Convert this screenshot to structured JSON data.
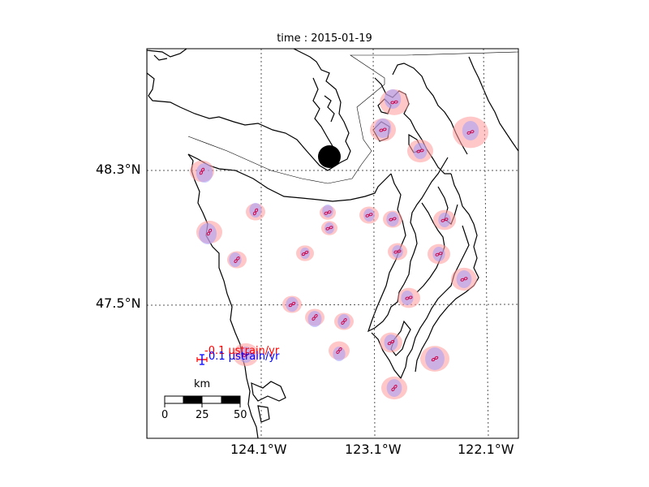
{
  "title": "time : 2015-01-19",
  "axes": {
    "lat_ticks": [
      "48.3°N",
      "47.5°N"
    ],
    "lon_ticks": [
      "124.1°W",
      "123.1°W",
      "122.1°W"
    ]
  },
  "legend": {
    "compression_label": "-0.1 μstrain/yr",
    "extension_label": "0.1 μstrain/yr",
    "compression_color": "#ff0000",
    "extension_color": "#0000ff"
  },
  "scale_bar": {
    "unit": "km",
    "ticks": [
      "0",
      "25",
      "50"
    ]
  },
  "colors": {
    "uncertainty_red": "#ff9999",
    "uncertainty_blue": "#9999ff",
    "glyph": "#cc0044",
    "coast": "#000000",
    "grid": "#555555"
  }
}
